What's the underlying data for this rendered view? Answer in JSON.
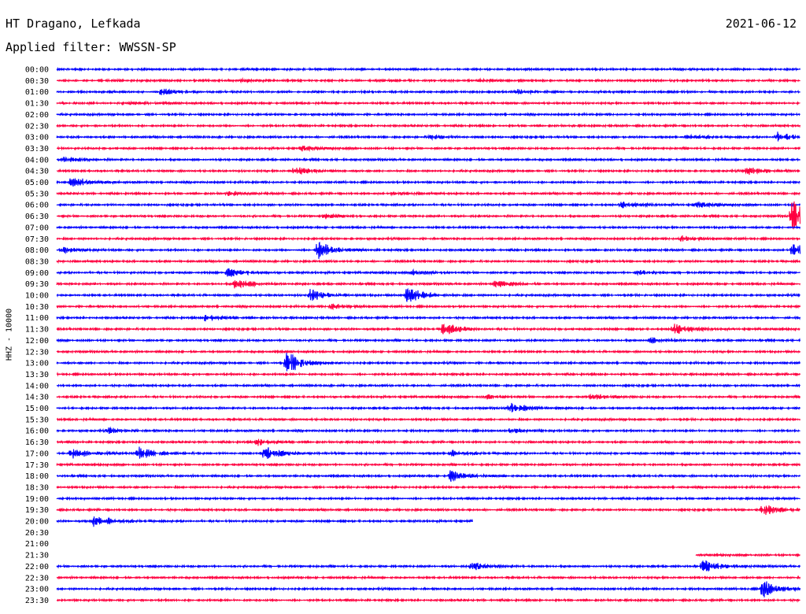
{
  "header": {
    "station": "HT Dragano, Lefkada",
    "date": "2021-06-12",
    "filter": "Applied filter: WWSSN-SP"
  },
  "chart_data": {
    "type": "line",
    "title": "HT Dragano, Lefkada",
    "ylabel": "HHZ - 10000",
    "row_labels": [
      "00:00",
      "00:30",
      "01:00",
      "01:30",
      "02:00",
      "02:30",
      "03:00",
      "03:30",
      "04:00",
      "04:30",
      "05:00",
      "05:30",
      "06:00",
      "06:30",
      "07:00",
      "07:30",
      "08:00",
      "08:30",
      "09:00",
      "09:30",
      "10:00",
      "10:30",
      "11:00",
      "11:30",
      "12:00",
      "12:30",
      "13:00",
      "13:30",
      "14:00",
      "14:30",
      "15:00",
      "15:30",
      "16:00",
      "16:30",
      "17:00",
      "17:30",
      "18:00",
      "18:30",
      "19:00",
      "19:30",
      "20:00",
      "20:30",
      "21:00",
      "21:30",
      "22:00",
      "22:30",
      "23:00",
      "23:30"
    ],
    "colors": [
      "#0000ff",
      "#ff0040"
    ],
    "gap": {
      "start": "20:00",
      "end": "21:30"
    },
    "events": [
      [
        1,
        0.25,
        1.5
      ],
      [
        1,
        0.57,
        1.2
      ],
      [
        2,
        0.14,
        4
      ],
      [
        2,
        0.62,
        2.5
      ],
      [
        3,
        0.1,
        1.5
      ],
      [
        6,
        0.5,
        2.5
      ],
      [
        6,
        0.85,
        3
      ],
      [
        6,
        0.97,
        6
      ],
      [
        7,
        0.33,
        3
      ],
      [
        8,
        0.01,
        3
      ],
      [
        9,
        0.32,
        6
      ],
      [
        9,
        0.93,
        5
      ],
      [
        10,
        0.02,
        8
      ],
      [
        11,
        0.23,
        2
      ],
      [
        11,
        0.45,
        2
      ],
      [
        12,
        0.76,
        4
      ],
      [
        12,
        0.86,
        4
      ],
      [
        13,
        0.36,
        3
      ],
      [
        13,
        0.99,
        22
      ],
      [
        15,
        0.84,
        4
      ],
      [
        16,
        0.01,
        4
      ],
      [
        16,
        0.35,
        12
      ],
      [
        16,
        0.99,
        12
      ],
      [
        18,
        0.23,
        6
      ],
      [
        18,
        0.48,
        4
      ],
      [
        18,
        0.78,
        3
      ],
      [
        19,
        0.24,
        7
      ],
      [
        19,
        0.59,
        5
      ],
      [
        20,
        0.34,
        8
      ],
      [
        20,
        0.47,
        13
      ],
      [
        21,
        0.37,
        4
      ],
      [
        22,
        0.2,
        5
      ],
      [
        23,
        0.52,
        8
      ],
      [
        23,
        0.83,
        8
      ],
      [
        24,
        0.8,
        3
      ],
      [
        26,
        0.31,
        15
      ],
      [
        29,
        0.58,
        3
      ],
      [
        29,
        0.72,
        3
      ],
      [
        30,
        0.61,
        7
      ],
      [
        32,
        0.07,
        3
      ],
      [
        32,
        0.61,
        3
      ],
      [
        33,
        0.27,
        5
      ],
      [
        34,
        0.02,
        8
      ],
      [
        34,
        0.11,
        8
      ],
      [
        34,
        0.28,
        10
      ],
      [
        34,
        0.53,
        3
      ],
      [
        36,
        0.53,
        7
      ],
      [
        39,
        0.95,
        8
      ],
      [
        40,
        0.05,
        8
      ],
      [
        44,
        0.56,
        6
      ],
      [
        44,
        0.87,
        9
      ],
      [
        46,
        0.95,
        12
      ]
    ]
  }
}
